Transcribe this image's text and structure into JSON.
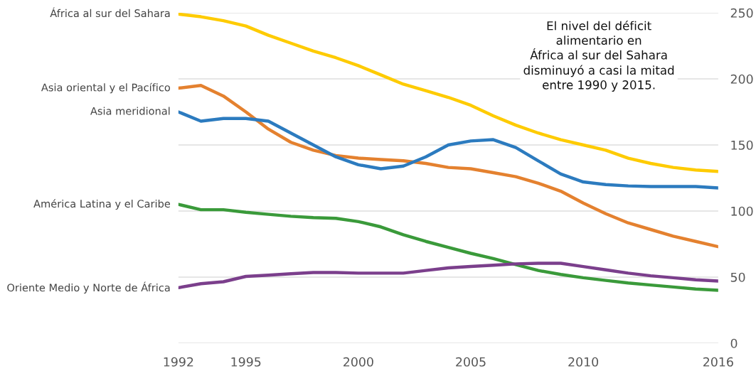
{
  "chart_data": {
    "type": "line",
    "x": [
      1992,
      1993,
      1994,
      1995,
      1996,
      1997,
      1998,
      1999,
      2000,
      2001,
      2002,
      2003,
      2004,
      2005,
      2006,
      2007,
      2008,
      2009,
      2010,
      2011,
      2012,
      2013,
      2014,
      2015,
      2016
    ],
    "series": [
      {
        "name": "África al sur del Sahara",
        "color": "#fecb00",
        "values": [
          249,
          247,
          244,
          240,
          233,
          227,
          221,
          216,
          210,
          203,
          196,
          191,
          186,
          180,
          172,
          165,
          159,
          154,
          150,
          146,
          140,
          136,
          133,
          131,
          130
        ]
      },
      {
        "name": "Asia oriental y el Pacífico",
        "color": "#e4812f",
        "values": [
          193,
          195,
          187,
          175,
          162,
          152,
          146,
          142,
          140,
          139,
          138,
          136,
          133,
          132,
          129,
          126,
          121,
          115,
          106,
          98,
          91,
          86,
          81,
          77,
          73
        ]
      },
      {
        "name": "Asia meridional",
        "color": "#2c7bbf",
        "values": [
          175,
          168,
          170,
          170,
          168,
          159,
          150,
          141,
          135,
          132,
          134,
          141,
          150,
          153,
          154,
          148,
          138,
          128,
          122,
          120,
          119,
          118.5,
          118.5,
          118.5,
          117.5
        ]
      },
      {
        "name": "América Latina y el Caribe",
        "color": "#3a9a3a",
        "values": [
          105,
          101,
          101,
          99,
          97.5,
          96,
          95,
          94.5,
          92,
          88,
          82,
          77,
          72.5,
          68,
          64,
          59.5,
          55,
          52,
          49.5,
          47.5,
          45.5,
          44,
          42.5,
          41,
          40
        ]
      },
      {
        "name": "Oriente Medio y Norte de África",
        "color": "#7b3f8c",
        "values": [
          42,
          45,
          46.5,
          50.5,
          51.5,
          52.5,
          53.5,
          53.5,
          53,
          53,
          53,
          55,
          57,
          58,
          59,
          60,
          60.5,
          60.5,
          58,
          55.5,
          53,
          51,
          49.5,
          48,
          47
        ]
      }
    ],
    "xlim": [
      1992,
      2016
    ],
    "xticks": [
      1992,
      1995,
      2000,
      2005,
      2010,
      2016
    ],
    "ylim": [
      0,
      250
    ],
    "yticks": [
      0,
      50,
      100,
      150,
      200,
      250
    ],
    "grid": "y",
    "marker": "none",
    "line_style": "solid",
    "annotations": [
      "El nivel del déficit\nalimentario en\nÁfrica al sur del Sahara\ndisminuyó a casi la mitad\nentre 1990 y 2015."
    ]
  }
}
